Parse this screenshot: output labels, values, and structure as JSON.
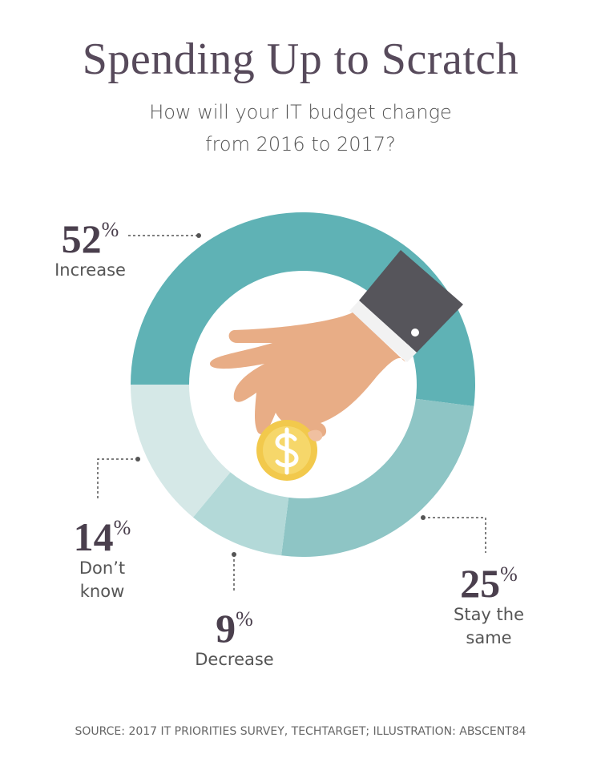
{
  "chart_data": {
    "type": "pie",
    "donut": true,
    "title": "Spending Up to Scratch",
    "subtitle": "How will your IT budget change from 2016 to 2017?",
    "categories": [
      "Increase",
      "Stay the same",
      "Decrease",
      "Don’t know"
    ],
    "values": [
      52,
      25,
      9,
      14
    ],
    "value_unit": "%",
    "colors": [
      "#5fb2b5",
      "#8ec5c5",
      "#b3d9d8",
      "#d5e8e7"
    ],
    "source": "SOURCE: 2017 IT PRIORITIES SURVEY, TECHTARGET; ILLUSTRATION: ABSCENT84"
  }
}
